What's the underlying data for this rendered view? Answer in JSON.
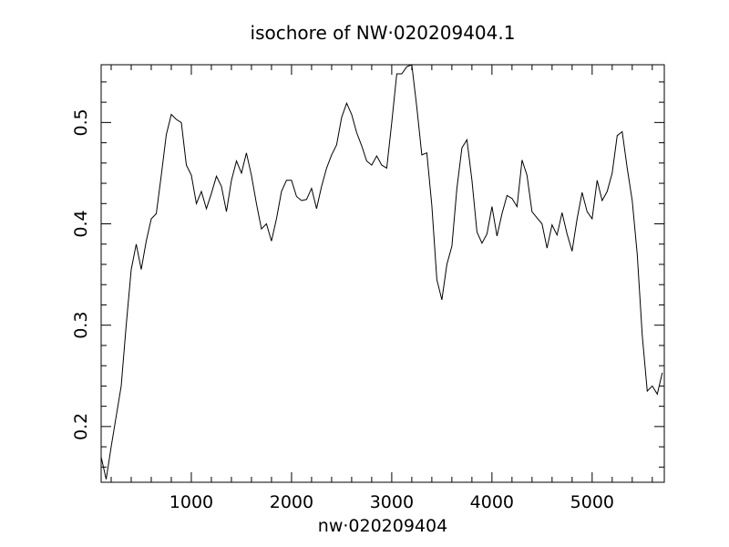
{
  "chart_data": {
    "type": "line",
    "title": "isochore of NW·020209404.1",
    "xlabel": "nw·020209404",
    "ylabel": "",
    "xlim": [
      100,
      5720
    ],
    "ylim": [
      0.145,
      0.557
    ],
    "xticks_major": [
      1000,
      2000,
      3000,
      4000,
      5000
    ],
    "xticks_minor_step": 200,
    "yticks_major": [
      0.2,
      0.3,
      0.4,
      0.5
    ],
    "yticks_minor_step": 0.02,
    "xtick_labels": [
      "1000",
      "2000",
      "3000",
      "4000",
      "5000"
    ],
    "ytick_labels": [
      "0.2",
      "0.3",
      "0.4",
      "0.5"
    ],
    "grid": false,
    "color": "#000000",
    "series": [
      {
        "x": [
          100,
          150,
          200,
          250,
          300,
          350,
          400,
          450,
          500,
          550,
          600,
          650,
          700,
          750,
          800,
          850,
          900,
          950,
          1000,
          1050,
          1100,
          1150,
          1200,
          1250,
          1300,
          1350,
          1400,
          1450,
          1500,
          1550,
          1600,
          1650,
          1700,
          1750,
          1800,
          1850,
          1900,
          1950,
          2000,
          2050,
          2100,
          2150,
          2200,
          2250,
          2300,
          2350,
          2400,
          2450,
          2500,
          2550,
          2600,
          2650,
          2700,
          2750,
          2800,
          2850,
          2900,
          2950,
          3000,
          3050,
          3100,
          3150,
          3200,
          3250,
          3300,
          3350,
          3400,
          3450,
          3500,
          3550,
          3600,
          3650,
          3700,
          3750,
          3800,
          3850,
          3900,
          3950,
          4000,
          4050,
          4100,
          4150,
          4200,
          4250,
          4300,
          4350,
          4400,
          4450,
          4500,
          4550,
          4600,
          4650,
          4700,
          4750,
          4800,
          4850,
          4900,
          4950,
          5000,
          5050,
          5100,
          5150,
          5200,
          5250,
          5300,
          5350,
          5400,
          5450,
          5500,
          5550,
          5600,
          5650,
          5700
        ],
        "y": [
          0.17,
          0.148,
          0.18,
          0.21,
          0.24,
          0.3,
          0.355,
          0.38,
          0.355,
          0.383,
          0.405,
          0.41,
          0.448,
          0.488,
          0.508,
          0.503,
          0.5,
          0.458,
          0.448,
          0.42,
          0.432,
          0.415,
          0.43,
          0.447,
          0.437,
          0.412,
          0.443,
          0.462,
          0.45,
          0.47,
          0.448,
          0.42,
          0.395,
          0.4,
          0.383,
          0.405,
          0.432,
          0.443,
          0.443,
          0.427,
          0.423,
          0.424,
          0.435,
          0.415,
          0.437,
          0.455,
          0.468,
          0.478,
          0.505,
          0.519,
          0.508,
          0.49,
          0.477,
          0.462,
          0.458,
          0.467,
          0.458,
          0.455,
          0.5,
          0.548,
          0.548,
          0.555,
          0.557,
          0.515,
          0.468,
          0.47,
          0.418,
          0.345,
          0.325,
          0.36,
          0.378,
          0.435,
          0.475,
          0.483,
          0.443,
          0.392,
          0.381,
          0.39,
          0.417,
          0.388,
          0.41,
          0.428,
          0.425,
          0.417,
          0.463,
          0.448,
          0.412,
          0.406,
          0.4,
          0.376,
          0.399,
          0.389,
          0.411,
          0.39,
          0.373,
          0.405,
          0.431,
          0.412,
          0.405,
          0.443,
          0.423,
          0.432,
          0.45,
          0.487,
          0.491,
          0.455,
          0.423,
          0.37,
          0.29,
          0.235,
          0.24,
          0.232,
          0.253
        ]
      }
    ]
  }
}
